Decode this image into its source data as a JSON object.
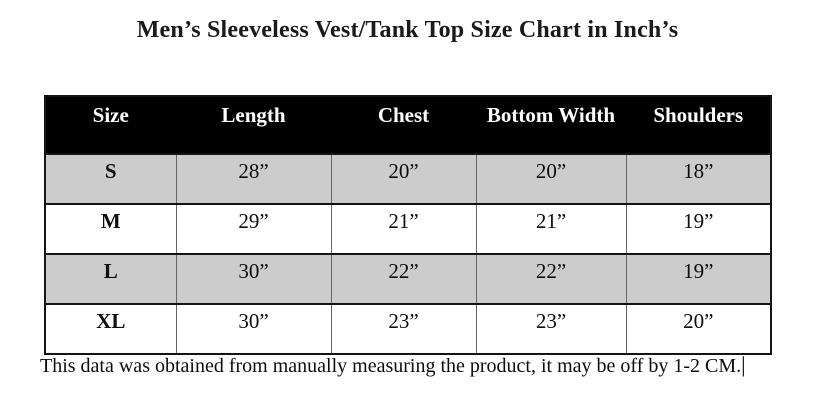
{
  "title": "Men’s Sleeveless Vest/Tank Top Size Chart in Inch’s",
  "table": {
    "headers": [
      "Size",
      "Length",
      "Chest",
      "Bottom Width",
      "Shoulders"
    ],
    "rows": [
      [
        "S",
        "28”",
        "20”",
        "20”",
        "18”"
      ],
      [
        "M",
        "29”",
        "21”",
        "21”",
        "19”"
      ],
      [
        "L",
        "30”",
        "22”",
        "22”",
        "19”"
      ],
      [
        "XL",
        "30”",
        "23”",
        "23”",
        "20”"
      ]
    ]
  },
  "footer": {
    "note": "This data was obtained from manually measuring the product, it may be off by 1-2 CM.",
    "caret": "|"
  }
}
